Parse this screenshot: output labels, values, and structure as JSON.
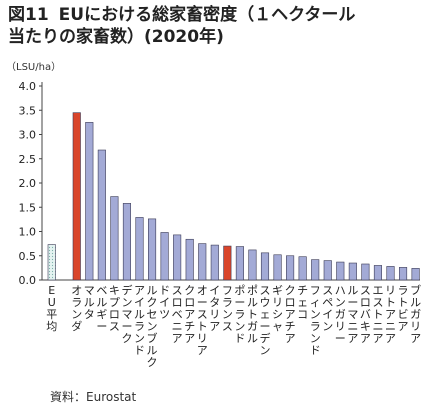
{
  "figure": {
    "number": "図11",
    "title_line1": "EUにおける総家畜密度（１ヘクタール",
    "title_line2": "当たりの家畜数）(2020年)",
    "unit": "（LSU/ha）",
    "source": "資料：Eurostat"
  },
  "chart_data": {
    "type": "bar",
    "title": "EUにおける総家畜密度（１ヘクタール当たりの家畜数）(2020年)",
    "ylabel": "（LSU/ha）",
    "xlabel": "",
    "ylim": [
      0,
      4.0
    ],
    "yticks": [
      "0.0",
      "0.5",
      "1.0",
      "1.5",
      "2.0",
      "2.5",
      "3.0",
      "3.5",
      "4.0"
    ],
    "grid": false,
    "categories": [
      "EU平均",
      "オランダ",
      "マルタ",
      "ベルギー",
      "キプロス",
      "デンマーク",
      "アイルランド",
      "ルクセンブルク",
      "ドイツ",
      "スロベニア",
      "クロアチア",
      "オーストリア",
      "イタリア",
      "フランス",
      "ポーランド",
      "ポルトガル",
      "スウェーデン",
      "ギリシャ",
      "クロアチア",
      "チェコ",
      "フィンランド",
      "スペイン",
      "ハンガリー",
      "ルーマニア",
      "スロバキア",
      "エストニア",
      "リトアニア",
      "ラトビア",
      "ブルガリア"
    ],
    "values": [
      0.73,
      3.45,
      3.25,
      2.68,
      1.72,
      1.58,
      1.29,
      1.26,
      0.98,
      0.93,
      0.84,
      0.75,
      0.72,
      0.7,
      0.69,
      0.62,
      0.56,
      0.52,
      0.5,
      0.48,
      0.42,
      0.4,
      0.37,
      0.35,
      0.33,
      0.3,
      0.28,
      0.26,
      0.24
    ],
    "highlight": {
      "EU平均": "hatched",
      "オランダ": "red",
      "フランス": "red"
    },
    "colors": {
      "default": "#a3aad6",
      "highlight": "#d9452b",
      "eu_average": "#dff0ee",
      "border": "#3a3a55"
    }
  }
}
